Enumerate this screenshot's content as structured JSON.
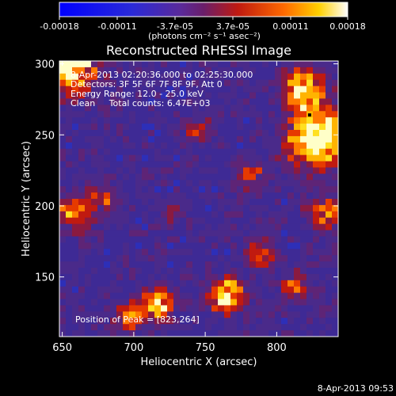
{
  "chart_data": {
    "type": "heatmap",
    "title": "Reconstructed RHESSI Image",
    "xlabel": "Heliocentric X (arcsec)",
    "ylabel": "Heliocentric Y (arcsec)",
    "xlim": [
      648,
      843
    ],
    "ylim": [
      108,
      302
    ],
    "x_ticks": [
      650,
      700,
      750,
      800
    ],
    "y_ticks": [
      150,
      200,
      250,
      300
    ],
    "colorbar": {
      "unit_label": "(photons cm⁻² s⁻¹ asec⁻²)",
      "ticks": [
        "-0.00018",
        "-0.00011",
        "-3.7e-05",
        "3.7e-05",
        "0.00011",
        "0.00018"
      ],
      "range": [
        -0.00018,
        0.00018
      ]
    },
    "info_lines": [
      "8-Apr-2013 02:20:36.000 to 02:25:30.000",
      "Detectors: 3F 5F 6F 7F 8F 9F, Att 0",
      "Energy Range: 12.0 - 25.0 keV",
      "Clean     Total counts: 6.47E+03"
    ],
    "peak_text": "Position of Peak = [823,264]",
    "peak_position": [
      823,
      264
    ],
    "timestamp": "8-Apr-2013 09:53",
    "grid": false,
    "legend": "none",
    "colormap": "blue-purple-red-yellow-white"
  }
}
